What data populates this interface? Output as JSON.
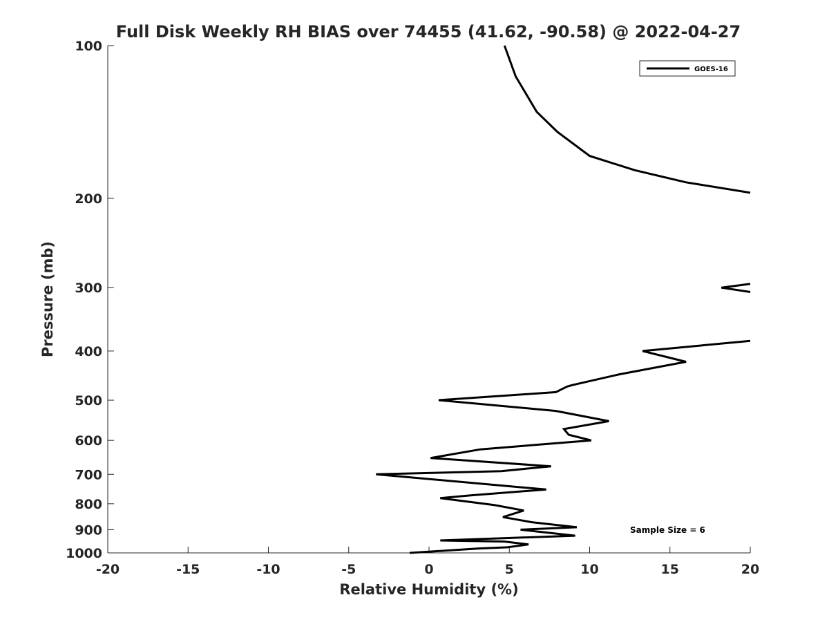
{
  "chart_data": {
    "type": "line",
    "title": "Full Disk Weekly RH BIAS over 74455 (41.62, -90.58) @ 2022-04-27",
    "xlabel": "Relative Humidity (%)",
    "ylabel": "Pressure (mb)",
    "xlim": [
      -20,
      20
    ],
    "ylim": [
      100,
      1000
    ],
    "y_scale": "log",
    "y_reversed": true,
    "grid": false,
    "legend_position": "top-right",
    "x_ticks": [
      -20,
      -15,
      -10,
      -5,
      0,
      5,
      10,
      15,
      20
    ],
    "y_ticks": [
      100,
      200,
      300,
      400,
      500,
      600,
      700,
      800,
      900,
      1000
    ],
    "annotation": "Sample Size = 6",
    "series": [
      {
        "name": "GOES-16",
        "color": "#000000",
        "segments": [
          [
            {
              "x": 4.7,
              "y": 100
            },
            {
              "x": 5.4,
              "y": 115
            },
            {
              "x": 6.7,
              "y": 135
            },
            {
              "x": 8.0,
              "y": 148
            },
            {
              "x": 10.0,
              "y": 165
            },
            {
              "x": 12.8,
              "y": 176
            },
            {
              "x": 16.0,
              "y": 186
            },
            {
              "x": 20.0,
              "y": 195
            }
          ],
          [
            {
              "x": 20.0,
              "y": 295
            },
            {
              "x": 18.2,
              "y": 300
            },
            {
              "x": 20.0,
              "y": 306
            }
          ],
          [
            {
              "x": 20.0,
              "y": 382
            },
            {
              "x": 13.3,
              "y": 400
            },
            {
              "x": 16.0,
              "y": 420
            },
            {
              "x": 11.8,
              "y": 445
            },
            {
              "x": 8.9,
              "y": 467
            },
            {
              "x": 8.6,
              "y": 470
            },
            {
              "x": 7.9,
              "y": 482
            },
            {
              "x": 0.6,
              "y": 500
            },
            {
              "x": 7.9,
              "y": 525
            },
            {
              "x": 11.2,
              "y": 550
            },
            {
              "x": 8.4,
              "y": 570
            },
            {
              "x": 8.7,
              "y": 585
            },
            {
              "x": 10.1,
              "y": 600
            },
            {
              "x": 3.2,
              "y": 625
            },
            {
              "x": 0.1,
              "y": 650
            },
            {
              "x": 7.6,
              "y": 675
            },
            {
              "x": 4.5,
              "y": 690
            },
            {
              "x": -3.3,
              "y": 700
            },
            {
              "x": 7.3,
              "y": 750
            },
            {
              "x": 2.6,
              "y": 770
            },
            {
              "x": 0.7,
              "y": 780
            },
            {
              "x": 4.1,
              "y": 805
            },
            {
              "x": 5.9,
              "y": 825
            },
            {
              "x": 4.6,
              "y": 850
            },
            {
              "x": 6.4,
              "y": 870
            },
            {
              "x": 9.2,
              "y": 890
            },
            {
              "x": 5.7,
              "y": 900
            },
            {
              "x": 9.1,
              "y": 925
            },
            {
              "x": 0.7,
              "y": 945
            },
            {
              "x": 4.7,
              "y": 950
            },
            {
              "x": 6.2,
              "y": 962
            },
            {
              "x": 4.9,
              "y": 975
            },
            {
              "x": 3.1,
              "y": 980
            },
            {
              "x": -1.2,
              "y": 1000
            }
          ]
        ]
      }
    ]
  }
}
